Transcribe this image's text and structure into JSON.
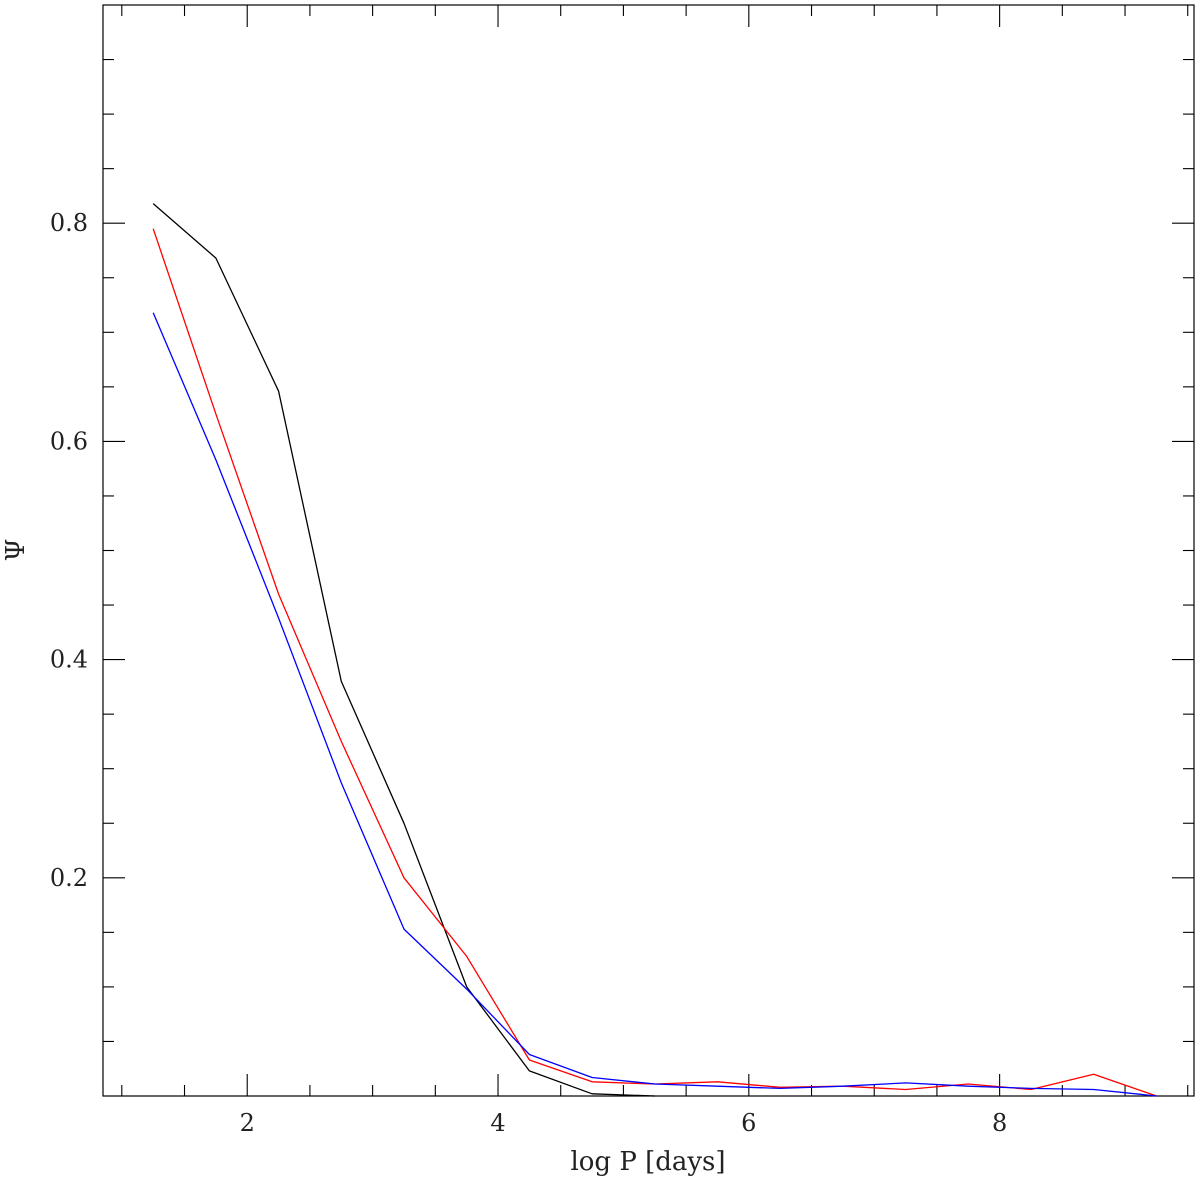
{
  "chart_data": {
    "type": "line",
    "xlabel": "log P [days]",
    "ylabel": "Ψ",
    "xlim": [
      0.85,
      9.55
    ],
    "ylim": [
      0,
      1.0
    ],
    "x_major_ticks": [
      2,
      4,
      6,
      8
    ],
    "x_tick_labels": [
      "2",
      "4",
      "6",
      "8"
    ],
    "x_minor_step": 0.5,
    "y_major_ticks": [
      0.2,
      0.4,
      0.6,
      0.8
    ],
    "y_tick_labels": [
      "0.2",
      "0.4",
      "0.6",
      "0.8"
    ],
    "y_minor_step": 0.05,
    "grid": false,
    "series": [
      {
        "color": "#000000",
        "x": [
          1.25,
          1.75,
          2.25,
          2.75,
          3.25,
          3.75,
          4.25,
          4.75,
          5.25
        ],
        "y": [
          0.818,
          0.768,
          0.646,
          0.38,
          0.25,
          0.1,
          0.023,
          0.002,
          0.0
        ]
      },
      {
        "color": "#ff0000",
        "x": [
          1.25,
          1.75,
          2.25,
          2.75,
          3.25,
          3.75,
          4.25,
          4.75,
          5.25,
          5.75,
          6.25,
          6.75,
          7.25,
          7.75,
          8.25,
          8.75,
          9.25
        ],
        "y": [
          0.795,
          0.625,
          0.46,
          0.325,
          0.2,
          0.128,
          0.033,
          0.013,
          0.011,
          0.013,
          0.008,
          0.009,
          0.006,
          0.011,
          0.006,
          0.02,
          0.0
        ]
      },
      {
        "color": "#0000ff",
        "x": [
          1.25,
          1.75,
          2.25,
          2.75,
          3.25,
          3.75,
          4.25,
          4.75,
          5.25,
          5.75,
          6.25,
          6.75,
          7.25,
          7.75,
          8.25,
          8.75,
          9.25
        ],
        "y": [
          0.718,
          0.583,
          0.438,
          0.287,
          0.153,
          0.098,
          0.038,
          0.017,
          0.011,
          0.009,
          0.007,
          0.009,
          0.012,
          0.009,
          0.007,
          0.006,
          0.0
        ]
      }
    ]
  }
}
